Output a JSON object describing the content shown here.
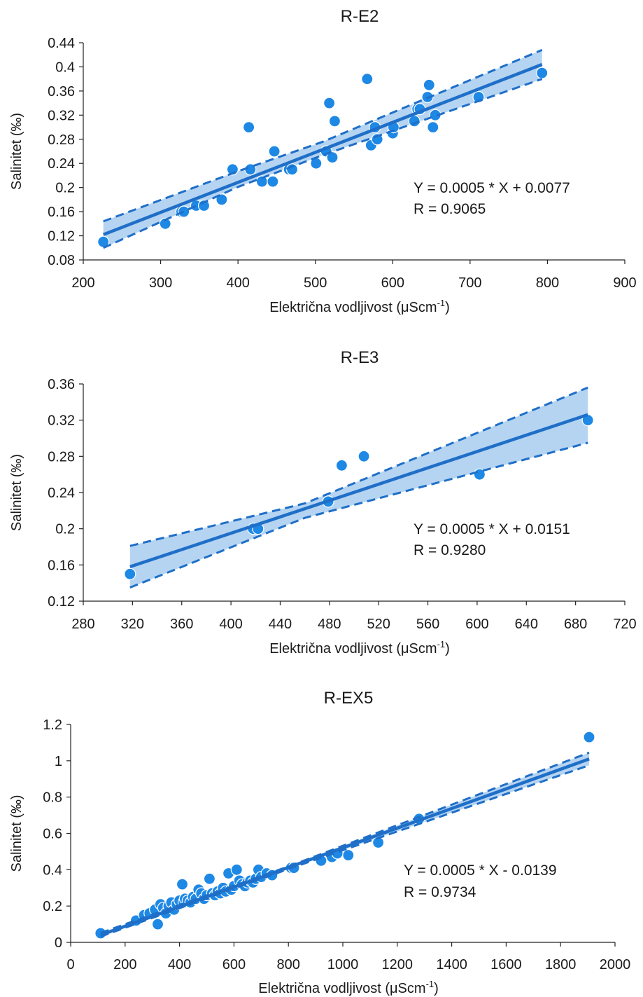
{
  "colors": {
    "marker": "#1e88e5",
    "fit_line": "#1f6fc8",
    "band_fill": "#a8cdf0",
    "axis": "#222222",
    "text": "#1a1a1a"
  },
  "chart_data": [
    {
      "type": "scatter",
      "title": "R-E2",
      "xlabel": "Električna vodljivost (μScm",
      "xlabel_sup": "-1",
      "xlabel_end": ")",
      "ylabel": "Salinitet (‰)",
      "xlim": [
        200,
        900
      ],
      "ylim": [
        0.08,
        0.44
      ],
      "xticks": [
        200,
        300,
        400,
        500,
        600,
        700,
        800,
        900
      ],
      "xtick_labels": [
        "200",
        "300",
        "400",
        "500",
        "600",
        "700",
        "800",
        "900"
      ],
      "yticks": [
        0.08,
        0.12,
        0.16,
        0.2,
        0.24,
        0.28,
        0.32,
        0.36,
        0.4,
        0.44
      ],
      "ytick_labels": [
        "0.08",
        "0.12",
        "0.16",
        "0.2",
        "0.24",
        "0.28",
        "0.32",
        "0.36",
        "0.4",
        "0.44"
      ],
      "grid": false,
      "equation": "Y = 0.0005 * X + 0.0077",
      "r_text": "R = 0.9065",
      "fit": {
        "x": [
          226,
          793
        ],
        "y": [
          0.122,
          0.404
        ]
      },
      "ci_upper": {
        "x": [
          226,
          400,
          510,
          793
        ],
        "y": [
          0.144,
          0.227,
          0.276,
          0.428
        ]
      },
      "ci_lower": {
        "x": [
          226,
          400,
          510,
          793
        ],
        "y": [
          0.1,
          0.201,
          0.254,
          0.38
        ]
      },
      "points": {
        "x": [
          226,
          306,
          327,
          330,
          346,
          356,
          379,
          393,
          416,
          414,
          431,
          445,
          447,
          466,
          470,
          501,
          514,
          518,
          522,
          525,
          567,
          572,
          577,
          580,
          600,
          601,
          628,
          632,
          635,
          645,
          647,
          652,
          655,
          711,
          793
        ],
        "y": [
          0.11,
          0.14,
          0.16,
          0.16,
          0.17,
          0.17,
          0.18,
          0.23,
          0.23,
          0.3,
          0.21,
          0.21,
          0.26,
          0.23,
          0.23,
          0.24,
          0.26,
          0.34,
          0.25,
          0.31,
          0.38,
          0.27,
          0.3,
          0.28,
          0.29,
          0.3,
          0.31,
          0.33,
          0.33,
          0.35,
          0.37,
          0.3,
          0.32,
          0.35,
          0.39
        ]
      }
    },
    {
      "type": "scatter",
      "title": "R-E3",
      "xlabel": "Električna vodljivost (μScm",
      "xlabel_sup": "-1",
      "xlabel_end": ")",
      "ylabel": "Salinitet (‰)",
      "xlim": [
        280,
        720
      ],
      "ylim": [
        0.12,
        0.36
      ],
      "xticks": [
        280,
        320,
        360,
        400,
        440,
        480,
        520,
        560,
        600,
        640,
        680,
        720
      ],
      "xtick_labels": [
        "280",
        "320",
        "360",
        "400",
        "440",
        "480",
        "520",
        "560",
        "600",
        "640",
        "680",
        "720"
      ],
      "yticks": [
        0.12,
        0.16,
        0.2,
        0.24,
        0.28,
        0.32,
        0.36
      ],
      "ytick_labels": [
        "0.12",
        "0.16",
        "0.2",
        "0.24",
        "0.28",
        "0.32",
        "0.36"
      ],
      "grid": false,
      "equation": "Y = 0.0005 * X + 0.0151",
      "r_text": "R = 0.9280",
      "fit": {
        "x": [
          318,
          690
        ],
        "y": [
          0.158,
          0.326
        ]
      },
      "ci_upper": {
        "x": [
          318,
          460,
          690
        ],
        "y": [
          0.181,
          0.228,
          0.356
        ]
      },
      "ci_lower": {
        "x": [
          318,
          460,
          690
        ],
        "y": [
          0.135,
          0.212,
          0.295
        ]
      },
      "points": {
        "x": [
          318,
          418,
          422,
          479,
          490,
          508,
          602,
          690
        ],
        "y": [
          0.15,
          0.2,
          0.2,
          0.23,
          0.27,
          0.28,
          0.26,
          0.32
        ]
      }
    },
    {
      "type": "scatter",
      "title": "R-EX5",
      "xlabel": "Električna vodljivost (μScm",
      "xlabel_sup": "-1",
      "xlabel_end": ")",
      "ylabel": "Salinitet (‰)",
      "xlim": [
        0,
        2000
      ],
      "ylim": [
        0,
        1.2
      ],
      "xticks": [
        0,
        200,
        400,
        600,
        800,
        1000,
        1200,
        1400,
        1600,
        1800,
        2000
      ],
      "xtick_labels": [
        "0",
        "200",
        "400",
        "600",
        "800",
        "1000",
        "1200",
        "1400",
        "1600",
        "1800",
        "2000"
      ],
      "yticks": [
        0,
        0.2,
        0.4,
        0.6,
        0.8,
        1,
        1.2
      ],
      "ytick_labels": [
        "0",
        "0.2",
        "0.4",
        "0.6",
        "0.8",
        "1",
        "1.2"
      ],
      "grid": false,
      "equation": "Y = 0.0005 * X - 0.0139",
      "r_text": "R = 0.9734",
      "fit": {
        "x": [
          110,
          1905
        ],
        "y": [
          0.04,
          1.01
        ]
      },
      "ci_upper": {
        "x": [
          110,
          800,
          1905
        ],
        "y": [
          0.052,
          0.418,
          1.045
        ]
      },
      "ci_lower": {
        "x": [
          110,
          800,
          1905
        ],
        "y": [
          0.032,
          0.404,
          0.975
        ]
      },
      "points": {
        "x": [
          110,
          240,
          270,
          290,
          310,
          320,
          330,
          340,
          350,
          360,
          370,
          380,
          390,
          400,
          410,
          415,
          420,
          430,
          440,
          450,
          460,
          470,
          480,
          490,
          500,
          510,
          520,
          530,
          540,
          550,
          560,
          570,
          580,
          590,
          600,
          610,
          620,
          630,
          640,
          650,
          660,
          670,
          680,
          690,
          700,
          720,
          740,
          810,
          820,
          920,
          960,
          980,
          1020,
          1130,
          1280,
          1905
        ],
        "y": [
          0.05,
          0.12,
          0.15,
          0.16,
          0.18,
          0.1,
          0.21,
          0.19,
          0.16,
          0.2,
          0.22,
          0.18,
          0.21,
          0.23,
          0.32,
          0.22,
          0.24,
          0.23,
          0.22,
          0.25,
          0.24,
          0.29,
          0.27,
          0.24,
          0.26,
          0.35,
          0.27,
          0.26,
          0.28,
          0.27,
          0.3,
          0.28,
          0.38,
          0.29,
          0.31,
          0.4,
          0.34,
          0.32,
          0.31,
          0.33,
          0.34,
          0.33,
          0.35,
          0.4,
          0.36,
          0.38,
          0.37,
          0.41,
          0.41,
          0.45,
          0.47,
          0.49,
          0.48,
          0.55,
          0.68,
          1.13
        ]
      }
    }
  ]
}
